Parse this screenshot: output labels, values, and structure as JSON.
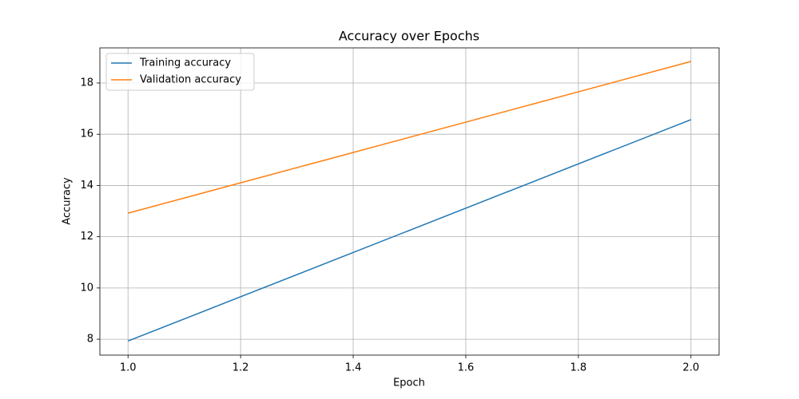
{
  "chart_data": {
    "type": "line",
    "title": "Accuracy over Epochs",
    "xlabel": "Epoch",
    "ylabel": "Accuracy",
    "x": [
      1,
      2
    ],
    "series": [
      {
        "name": "Training accuracy",
        "color": "#1f77b4",
        "values": [
          7.93,
          16.57
        ]
      },
      {
        "name": "Validation accuracy",
        "color": "#ff7f0e",
        "values": [
          12.92,
          18.84
        ]
      }
    ],
    "xlim": [
      0.95,
      2.05
    ],
    "xticks": [
      {
        "value": 1,
        "label": "1.0"
      },
      {
        "value": 1.2,
        "label": "1.2"
      },
      {
        "value": 1.4,
        "label": "1.4"
      },
      {
        "value": 1.6,
        "label": "1.6"
      },
      {
        "value": 1.8,
        "label": "1.8"
      },
      {
        "value": 2,
        "label": "2.0"
      }
    ],
    "ylim": [
      7.38,
      19.37
    ],
    "yticks": [
      8,
      10,
      12,
      14,
      16,
      18
    ],
    "grid": true,
    "legend": "upper left"
  }
}
